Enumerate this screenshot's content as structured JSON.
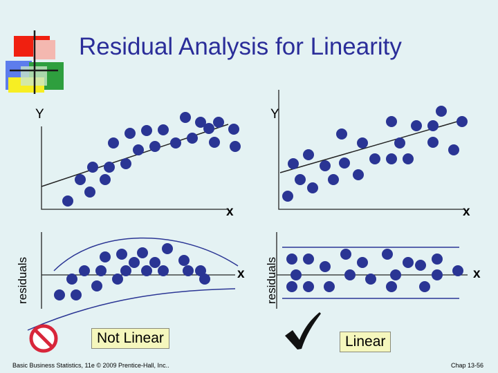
{
  "slide": {
    "title": "Residual Analysis for Linearity",
    "footer_left": "Basic Business Statistics, 11e © 2009 Prentice-Hall, Inc..",
    "footer_right": "Chap 13-56"
  },
  "panels": {
    "nonlinear": {
      "y_letter": "Y",
      "x_letter": "x",
      "resid_label": "residuals",
      "resid_x_letter": "x",
      "verdict": "Not Linear",
      "verdict_icon": "prohibition-icon"
    },
    "linear": {
      "y_letter": "Y",
      "x_letter": "x",
      "resid_label": "residuals",
      "resid_x_letter": "x",
      "verdict": "Linear",
      "verdict_icon": "checkmark-icon"
    }
  },
  "colors": {
    "background": "#e4f2f3",
    "title": "#2a2d99",
    "dot": "#2a3594",
    "box_fill": "#f5f7bd",
    "prohibition": "#d8263a"
  }
}
